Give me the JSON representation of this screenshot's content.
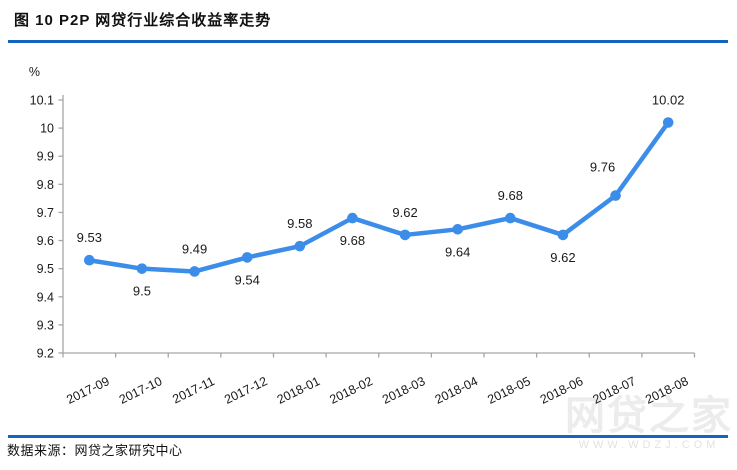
{
  "header": {
    "title": "图 10  P2P 网贷行业综合收益率走势"
  },
  "footer": {
    "source": "数据来源：网贷之家研究中心"
  },
  "watermark": {
    "brand": "网贷之家",
    "url": "WWW.WDZJ.COM"
  },
  "colors": {
    "divider_blue": "#1565c0",
    "line_blue": "#3b8de9",
    "axis_gray": "#a6a6a6",
    "text_dark": "#1a1a1a"
  },
  "chart_data": {
    "type": "line",
    "title": "P2P网贷行业综合收益率走势",
    "unit_label": "%",
    "categories": [
      "2017-09",
      "2017-10",
      "2017-11",
      "2017-12",
      "2018-01",
      "2018-02",
      "2018-03",
      "2018-04",
      "2018-05",
      "2018-06",
      "2018-07",
      "2018-08"
    ],
    "values": [
      9.53,
      9.5,
      9.49,
      9.54,
      9.58,
      9.68,
      9.62,
      9.64,
      9.68,
      9.62,
      9.76,
      10.02
    ],
    "data_labels": [
      "9.53",
      "9.5",
      "9.49",
      "9.54",
      "9.58",
      "9.68",
      "9.62",
      "9.64",
      "9.68",
      "9.62",
      "9.76",
      "10.02"
    ],
    "label_positions": [
      "above",
      "below",
      "above",
      "below",
      "above",
      "below",
      "above",
      "below",
      "above",
      "below",
      "above-left",
      "above"
    ],
    "ylim": [
      9.2,
      10.1
    ],
    "ytick_step": 0.1,
    "ytick_labels": [
      "10.1",
      "10",
      "9.9",
      "9.8",
      "9.7",
      "9.6",
      "9.5",
      "9.4",
      "9.3",
      "9.2"
    ],
    "grid": false,
    "legend": "none",
    "marker": "circle"
  }
}
